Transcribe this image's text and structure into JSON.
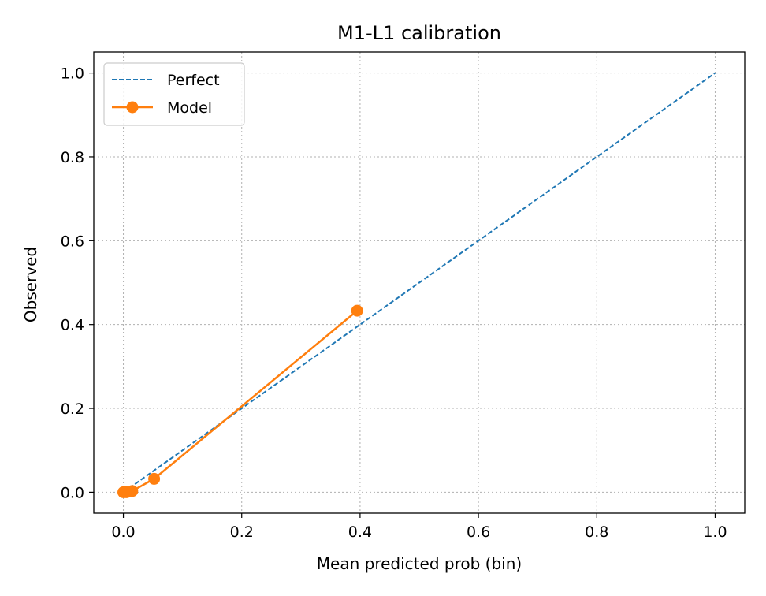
{
  "chart_data": {
    "type": "line",
    "title": "M1-L1 calibration",
    "xlabel": "Mean predicted prob (bin)",
    "ylabel": "Observed",
    "xlim": [
      -0.05,
      1.05
    ],
    "ylim": [
      -0.05,
      1.05
    ],
    "xticks": [
      "0.0",
      "0.2",
      "0.4",
      "0.6",
      "0.8",
      "1.0"
    ],
    "yticks": [
      "0.0",
      "0.2",
      "0.4",
      "0.6",
      "0.8",
      "1.0"
    ],
    "grid": true,
    "legend_position": "top-left",
    "series": [
      {
        "name": "Perfect",
        "style": "dashed",
        "marker": "none",
        "color": "#1f77b4",
        "x": [
          0.0,
          1.0
        ],
        "y": [
          0.0,
          1.0
        ]
      },
      {
        "name": "Model",
        "style": "solid",
        "marker": "circle",
        "color": "#ff7f0e",
        "x": [
          0.0,
          0.005,
          0.015,
          0.052,
          0.395
        ],
        "y": [
          0.0,
          0.0,
          0.003,
          0.032,
          0.433
        ]
      }
    ]
  }
}
